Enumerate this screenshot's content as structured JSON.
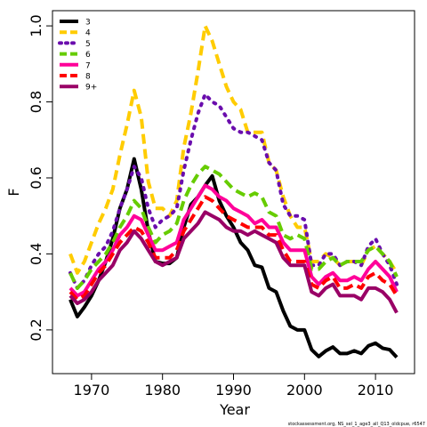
{
  "chart_data": {
    "type": "line",
    "xlabel": "Year",
    "ylabel": "F",
    "xlim": [
      1964.5,
      2015.5
    ],
    "ylim": [
      0.085,
      1.04
    ],
    "x_ticks": [
      1970,
      1980,
      1990,
      2000,
      2010
    ],
    "y_ticks": [
      0.2,
      0.4,
      0.6,
      0.8,
      1.0
    ],
    "x_tick_labels": [
      "1970",
      "1980",
      "1990",
      "2000",
      "2010"
    ],
    "y_tick_labels": [
      "0.2",
      "0.4",
      "0.6",
      "0.8",
      "1.0"
    ],
    "grid": false,
    "legend_position": "top-left",
    "footnote": "stockassessment.org, NS_sel_1_age3_all_Q13_oldcpue, r6547",
    "x": [
      1967,
      1968,
      1969,
      1970,
      1971,
      1972,
      1973,
      1974,
      1975,
      1976,
      1977,
      1978,
      1979,
      1980,
      1981,
      1982,
      1983,
      1984,
      1985,
      1986,
      1987,
      1988,
      1989,
      1990,
      1991,
      1992,
      1993,
      1994,
      1995,
      1996,
      1997,
      1998,
      1999,
      2000,
      2001,
      2002,
      2003,
      2004,
      2005,
      2006,
      2007,
      2008,
      2009,
      2010,
      2011,
      2012,
      2013
    ],
    "series": [
      {
        "name": "3",
        "color": "#000000",
        "dash": "solid",
        "values": [
          0.28,
          0.235,
          0.26,
          0.29,
          0.33,
          0.38,
          0.44,
          0.52,
          0.57,
          0.65,
          0.57,
          0.46,
          0.38,
          0.375,
          0.375,
          0.39,
          0.47,
          0.53,
          0.55,
          0.58,
          0.605,
          0.54,
          0.5,
          0.47,
          0.43,
          0.41,
          0.37,
          0.365,
          0.31,
          0.3,
          0.25,
          0.21,
          0.2,
          0.2,
          0.148,
          0.13,
          0.145,
          0.155,
          0.138,
          0.138,
          0.145,
          0.138,
          0.158,
          0.165,
          0.152,
          0.148,
          0.128
        ]
      },
      {
        "name": "4",
        "color": "#FFCC00",
        "dash": "dashed",
        "values": [
          0.4,
          0.35,
          0.38,
          0.43,
          0.48,
          0.52,
          0.57,
          0.66,
          0.74,
          0.83,
          0.76,
          0.59,
          0.52,
          0.52,
          0.5,
          0.54,
          0.68,
          0.77,
          0.88,
          1.0,
          0.96,
          0.9,
          0.84,
          0.8,
          0.78,
          0.72,
          0.72,
          0.72,
          0.64,
          0.62,
          0.55,
          0.5,
          0.47,
          0.47,
          0.38,
          0.38,
          0.4,
          0.39,
          0.37,
          0.38,
          0.38,
          0.37,
          0.41,
          0.42,
          0.4,
          0.38,
          0.35
        ]
      },
      {
        "name": "5",
        "color": "#6A0DAD",
        "dash": "dotted",
        "values": [
          0.35,
          0.31,
          0.33,
          0.37,
          0.4,
          0.42,
          0.46,
          0.52,
          0.57,
          0.63,
          0.6,
          0.52,
          0.47,
          0.49,
          0.5,
          0.52,
          0.62,
          0.7,
          0.77,
          0.82,
          0.8,
          0.79,
          0.76,
          0.73,
          0.72,
          0.72,
          0.71,
          0.7,
          0.64,
          0.62,
          0.53,
          0.5,
          0.5,
          0.49,
          0.37,
          0.37,
          0.4,
          0.4,
          0.37,
          0.38,
          0.38,
          0.37,
          0.42,
          0.44,
          0.4,
          0.37,
          0.32
        ]
      },
      {
        "name": "6",
        "color": "#66CC00",
        "dash": "dashed",
        "values": [
          0.35,
          0.31,
          0.33,
          0.36,
          0.38,
          0.4,
          0.43,
          0.47,
          0.5,
          0.54,
          0.52,
          0.47,
          0.43,
          0.45,
          0.46,
          0.48,
          0.54,
          0.58,
          0.61,
          0.63,
          0.62,
          0.61,
          0.59,
          0.57,
          0.56,
          0.55,
          0.56,
          0.55,
          0.51,
          0.5,
          0.45,
          0.44,
          0.45,
          0.44,
          0.36,
          0.36,
          0.38,
          0.39,
          0.37,
          0.38,
          0.38,
          0.38,
          0.41,
          0.42,
          0.4,
          0.38,
          0.34
        ]
      },
      {
        "name": "7",
        "color": "#FF0099",
        "dash": "solid",
        "values": [
          0.31,
          0.29,
          0.3,
          0.33,
          0.36,
          0.38,
          0.41,
          0.45,
          0.47,
          0.5,
          0.49,
          0.45,
          0.41,
          0.41,
          0.42,
          0.43,
          0.49,
          0.52,
          0.55,
          0.58,
          0.57,
          0.55,
          0.54,
          0.52,
          0.51,
          0.5,
          0.48,
          0.49,
          0.47,
          0.47,
          0.43,
          0.41,
          0.41,
          0.41,
          0.34,
          0.32,
          0.34,
          0.35,
          0.33,
          0.33,
          0.34,
          0.33,
          0.36,
          0.38,
          0.36,
          0.34,
          0.3
        ]
      },
      {
        "name": "8",
        "color": "#FF0000",
        "dash": "dashed",
        "values": [
          0.3,
          0.28,
          0.29,
          0.32,
          0.35,
          0.37,
          0.4,
          0.43,
          0.45,
          0.47,
          0.46,
          0.43,
          0.39,
          0.39,
          0.39,
          0.41,
          0.46,
          0.49,
          0.52,
          0.55,
          0.54,
          0.52,
          0.5,
          0.49,
          0.48,
          0.47,
          0.47,
          0.47,
          0.45,
          0.45,
          0.41,
          0.38,
          0.38,
          0.38,
          0.32,
          0.31,
          0.33,
          0.34,
          0.31,
          0.31,
          0.32,
          0.31,
          0.34,
          0.35,
          0.33,
          0.32,
          0.29
        ]
      },
      {
        "name": "9+",
        "color": "#990066",
        "dash": "solid",
        "values": [
          0.29,
          0.27,
          0.28,
          0.3,
          0.33,
          0.35,
          0.37,
          0.41,
          0.43,
          0.46,
          0.44,
          0.41,
          0.38,
          0.37,
          0.38,
          0.39,
          0.44,
          0.46,
          0.48,
          0.51,
          0.5,
          0.49,
          0.47,
          0.46,
          0.46,
          0.45,
          0.46,
          0.45,
          0.44,
          0.43,
          0.39,
          0.37,
          0.37,
          0.37,
          0.3,
          0.29,
          0.31,
          0.32,
          0.29,
          0.29,
          0.29,
          0.28,
          0.31,
          0.31,
          0.3,
          0.28,
          0.245
        ]
      }
    ]
  }
}
